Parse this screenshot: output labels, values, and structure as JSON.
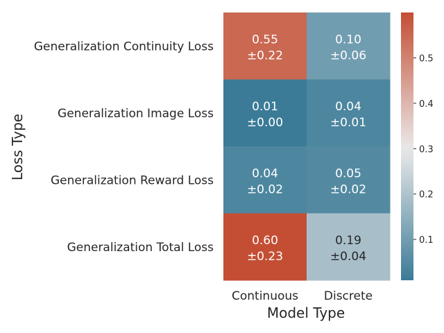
{
  "chart_data": {
    "type": "heatmap",
    "title": "",
    "xlabel": "Model Type",
    "ylabel": "Loss Type",
    "x_categories": [
      "Continuous",
      "Discrete"
    ],
    "y_categories": [
      "Generalization Continuity Loss",
      "Generalization Image Loss",
      "Generalization Reward Loss",
      "Generalization Total Loss"
    ],
    "values": [
      [
        0.55,
        0.1
      ],
      [
        0.01,
        0.04
      ],
      [
        0.04,
        0.05
      ],
      [
        0.6,
        0.19
      ]
    ],
    "annotations": [
      [
        [
          "0.55",
          "±0.22"
        ],
        [
          "0.10",
          "±0.06"
        ]
      ],
      [
        [
          "0.01",
          "±0.00"
        ],
        [
          "0.04",
          "±0.01"
        ]
      ],
      [
        [
          "0.04",
          "±0.02"
        ],
        [
          "0.05",
          "±0.02"
        ]
      ],
      [
        [
          "0.60",
          "±0.23"
        ],
        [
          "0.19",
          "±0.04"
        ]
      ]
    ],
    "colorbar": {
      "range": [
        0.01,
        0.6
      ],
      "ticks": [
        0.1,
        0.2,
        0.3,
        0.4,
        0.5
      ],
      "tick_labels": [
        "0.1",
        "0.2",
        "0.3",
        "0.4",
        "0.5"
      ],
      "colormap": [
        "#3b7b97",
        "#eae9e9",
        "#c44e34"
      ],
      "center_value": 0.3
    },
    "grid": false,
    "legend": "colorbar-right"
  }
}
